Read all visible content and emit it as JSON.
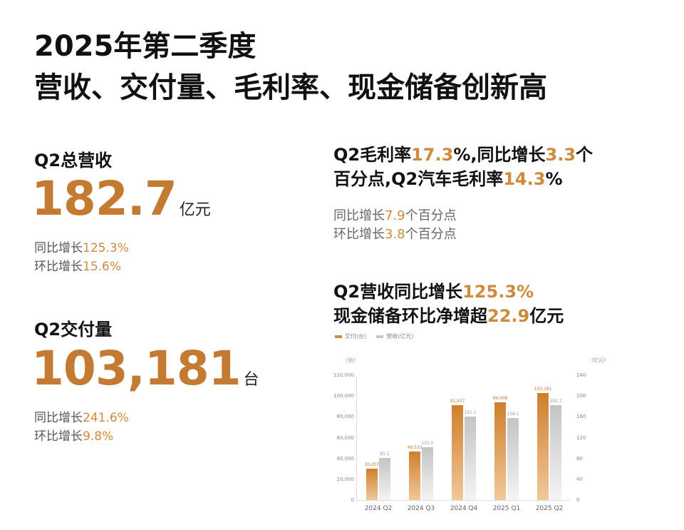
{
  "title": {
    "line1": "2025年第二季度",
    "line2": "营收、交付量、毛利率、现金储备创新高"
  },
  "revenue": {
    "label": "Q2总营收",
    "value": "182.7",
    "unit": "亿元",
    "yoy_prefix": "同比增长",
    "yoy": "125.3%",
    "qoq_prefix": "环比增长",
    "qoq": "15.6%"
  },
  "deliveries": {
    "label": "Q2交付量",
    "value": "103,181",
    "unit": "台",
    "yoy_prefix": "同比增长",
    "yoy": "241.6%",
    "qoq_prefix": "环比增长",
    "qoq": "9.8%"
  },
  "margin": {
    "a": "Q2毛利率",
    "b": "17.3",
    "c": "%,同比增长",
    "d": "3.3",
    "e": "个",
    "f": "百分点,Q2汽车毛利率",
    "g": "14.3",
    "h": "%",
    "s1a": "同比增长",
    "s1b": "7.9",
    "s1c": "个百分点",
    "s2a": "环比增长",
    "s2b": "3.8",
    "s2c": "个百分点"
  },
  "cash": {
    "a": "Q2营收同比增长",
    "b": "125.3%",
    "c": "现金储备环比净增超",
    "d": "22.9",
    "e": "亿元"
  },
  "chart_data": {
    "type": "bar",
    "categories": [
      "2024 Q2",
      "2024 Q3",
      "2024 Q4",
      "2025 Q1",
      "2025 Q2"
    ],
    "series": [
      {
        "name": "交付(台)",
        "axis": "left",
        "values": [
          30207,
          46533,
          91507,
          94008,
          103181
        ]
      },
      {
        "name": "营收(亿元)",
        "axis": "right",
        "values": [
          81.1,
          101.0,
          161.1,
          158.1,
          182.7
        ]
      }
    ],
    "ylabel_left": "(台)",
    "ylabel_right": "(亿元)",
    "ylim_left": [
      0,
      120000
    ],
    "ylim_right": [
      0,
      240
    ],
    "yticks_left": [
      "0",
      "20,000",
      "40,000",
      "60,000",
      "80,000",
      "100,000",
      "120,000"
    ],
    "yticks_right": [
      "0",
      "40",
      "80",
      "120",
      "160",
      "200",
      "240"
    ],
    "legend": [
      "交付(台)",
      "营收(亿元)"
    ],
    "colors": [
      "#d08a3c",
      "#c8c8c8"
    ]
  }
}
